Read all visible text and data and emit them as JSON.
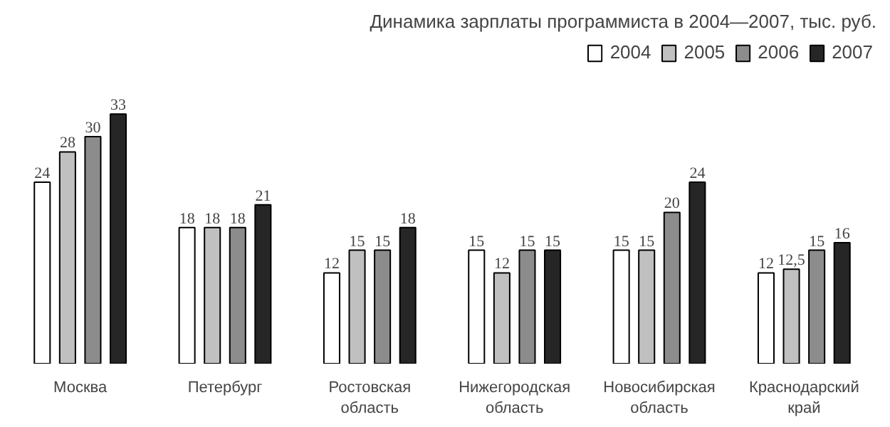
{
  "chart_data": {
    "type": "bar",
    "title": "Динамика зарплаты программиста в 2004—2007, тыс. руб.",
    "categories": [
      "Москва",
      "Петербург",
      "Ростовская\nобласть",
      "Нижегородская\nобласть",
      "Новосибирская\nобласть",
      "Краснодарский\nкрай"
    ],
    "series": [
      {
        "name": "2004",
        "color": "#ffffff",
        "values": [
          24,
          18,
          12,
          15,
          15,
          12
        ],
        "value_labels": [
          "24",
          "18",
          "12",
          "15",
          "15",
          "12"
        ]
      },
      {
        "name": "2005",
        "color": "#c0c0c0",
        "values": [
          28,
          18,
          15,
          12,
          15,
          12.5
        ],
        "value_labels": [
          "28",
          "18",
          "15",
          "12",
          "15",
          "12,5"
        ]
      },
      {
        "name": "2006",
        "color": "#8c8c8c",
        "values": [
          30,
          18,
          15,
          15,
          20,
          15
        ],
        "value_labels": [
          "30",
          "18",
          "15",
          "15",
          "20",
          "15"
        ]
      },
      {
        "name": "2007",
        "color": "#262626",
        "values": [
          33,
          21,
          18,
          15,
          24,
          16
        ],
        "value_labels": [
          "33",
          "21",
          "18",
          "15",
          "24",
          "16"
        ]
      }
    ],
    "legend": "top right",
    "grid": false
  }
}
